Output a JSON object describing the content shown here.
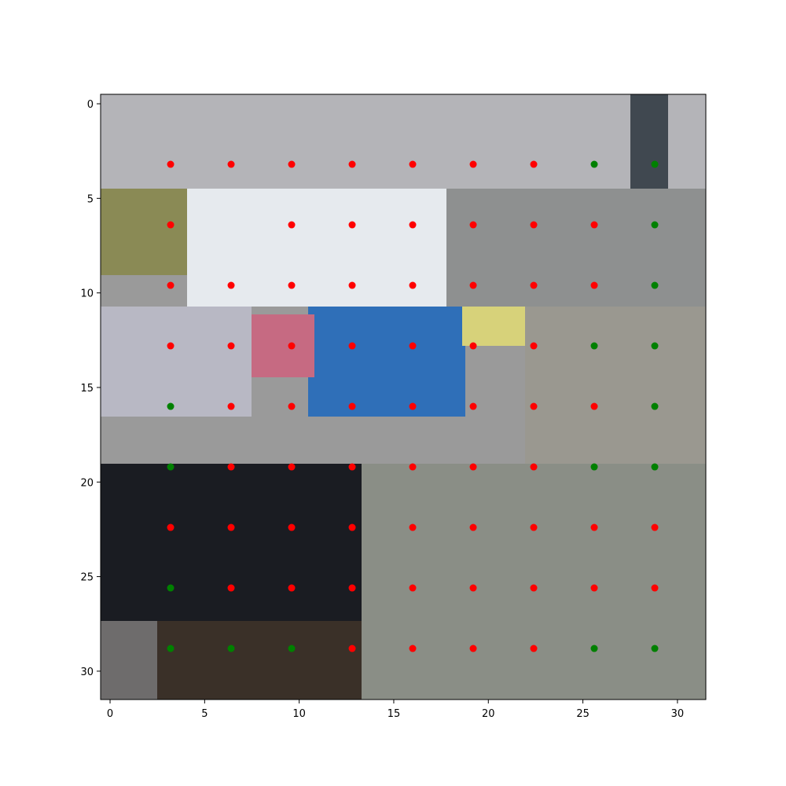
{
  "chart_data": {
    "type": "scatter",
    "background": "pixelated image (32x32 grid)",
    "xlim": [
      -0.5,
      31.5
    ],
    "ylim": [
      31.5,
      -0.5
    ],
    "x_ticks": [
      0,
      5,
      10,
      15,
      20,
      25,
      30
    ],
    "y_ticks": [
      0,
      5,
      10,
      15,
      20,
      25,
      30
    ],
    "grid": false,
    "legend": "none",
    "series": [
      {
        "color": "#ff0000",
        "points": [
          [
            3.2,
            3.2
          ],
          [
            6.4,
            3.2
          ],
          [
            9.6,
            3.2
          ],
          [
            12.8,
            3.2
          ],
          [
            16.0,
            3.2
          ],
          [
            19.2,
            3.2
          ],
          [
            22.4,
            3.2
          ],
          [
            3.2,
            6.4
          ],
          [
            9.6,
            6.4
          ],
          [
            12.8,
            6.4
          ],
          [
            16.0,
            6.4
          ],
          [
            19.2,
            6.4
          ],
          [
            22.4,
            6.4
          ],
          [
            25.6,
            6.4
          ],
          [
            3.2,
            9.6
          ],
          [
            6.4,
            9.6
          ],
          [
            9.6,
            9.6
          ],
          [
            12.8,
            9.6
          ],
          [
            16.0,
            9.6
          ],
          [
            19.2,
            9.6
          ],
          [
            22.4,
            9.6
          ],
          [
            25.6,
            9.6
          ],
          [
            3.2,
            12.8
          ],
          [
            6.4,
            12.8
          ],
          [
            9.6,
            12.8
          ],
          [
            12.8,
            12.8
          ],
          [
            16.0,
            12.8
          ],
          [
            19.2,
            12.8
          ],
          [
            22.4,
            12.8
          ],
          [
            6.4,
            16.0
          ],
          [
            9.6,
            16.0
          ],
          [
            12.8,
            16.0
          ],
          [
            16.0,
            16.0
          ],
          [
            19.2,
            16.0
          ],
          [
            22.4,
            16.0
          ],
          [
            25.6,
            16.0
          ],
          [
            6.4,
            19.2
          ],
          [
            9.6,
            19.2
          ],
          [
            12.8,
            19.2
          ],
          [
            16.0,
            19.2
          ],
          [
            19.2,
            19.2
          ],
          [
            22.4,
            19.2
          ],
          [
            3.2,
            22.4
          ],
          [
            6.4,
            22.4
          ],
          [
            9.6,
            22.4
          ],
          [
            12.8,
            22.4
          ],
          [
            16.0,
            22.4
          ],
          [
            19.2,
            22.4
          ],
          [
            22.4,
            22.4
          ],
          [
            25.6,
            22.4
          ],
          [
            28.8,
            22.4
          ],
          [
            6.4,
            25.6
          ],
          [
            9.6,
            25.6
          ],
          [
            12.8,
            25.6
          ],
          [
            16.0,
            25.6
          ],
          [
            19.2,
            25.6
          ],
          [
            22.4,
            25.6
          ],
          [
            25.6,
            25.6
          ],
          [
            28.8,
            25.6
          ],
          [
            12.8,
            28.8
          ],
          [
            16.0,
            28.8
          ],
          [
            19.2,
            28.8
          ],
          [
            22.4,
            28.8
          ]
        ]
      },
      {
        "color": "#008000",
        "points": [
          [
            25.6,
            3.2
          ],
          [
            28.8,
            3.2
          ],
          [
            28.8,
            6.4
          ],
          [
            28.8,
            9.6
          ],
          [
            25.6,
            12.8
          ],
          [
            28.8,
            12.8
          ],
          [
            3.2,
            16.0
          ],
          [
            28.8,
            16.0
          ],
          [
            3.2,
            19.2
          ],
          [
            25.6,
            19.2
          ],
          [
            28.8,
            19.2
          ],
          [
            3.2,
            25.6
          ],
          [
            3.2,
            28.8
          ],
          [
            6.4,
            28.8
          ],
          [
            9.6,
            28.8
          ],
          [
            25.6,
            28.8
          ],
          [
            28.8,
            28.8
          ]
        ]
      }
    ]
  }
}
